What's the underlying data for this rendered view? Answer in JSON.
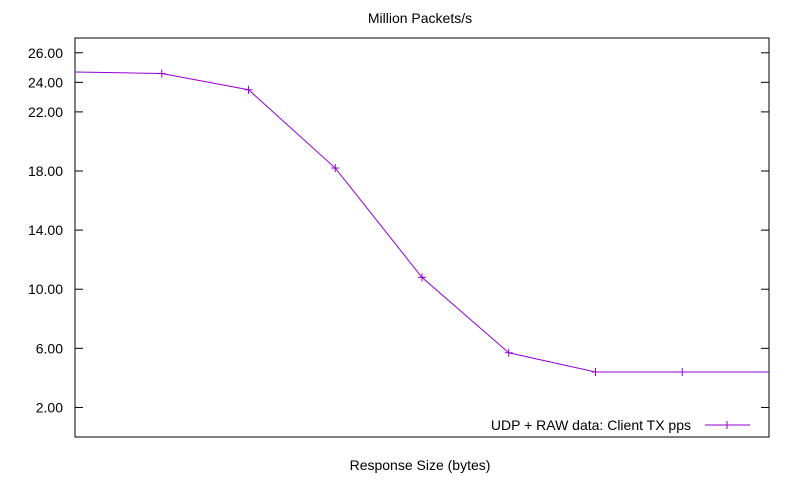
{
  "chart_data": {
    "type": "line",
    "title": "Million Packets/s",
    "xlabel": "Response Size (bytes)",
    "ylabel": "",
    "yticks": [
      "2.00",
      "6.00",
      "10.00",
      "14.00",
      "18.00",
      "22.00",
      "24.00",
      "26.00"
    ],
    "ytick_values": [
      2,
      6,
      10,
      14,
      18,
      22,
      24,
      26
    ],
    "ylim": [
      0,
      27
    ],
    "grid": false,
    "legend": "bottom-right",
    "series": [
      {
        "name": "UDP + RAW data: Client TX pps",
        "color": "#9400d3",
        "x": [
          0,
          1,
          2,
          3,
          4,
          5,
          6,
          7,
          8
        ],
        "values": [
          24.7,
          24.6,
          23.5,
          18.2,
          10.8,
          5.7,
          4.4,
          4.4,
          4.4
        ]
      }
    ]
  }
}
